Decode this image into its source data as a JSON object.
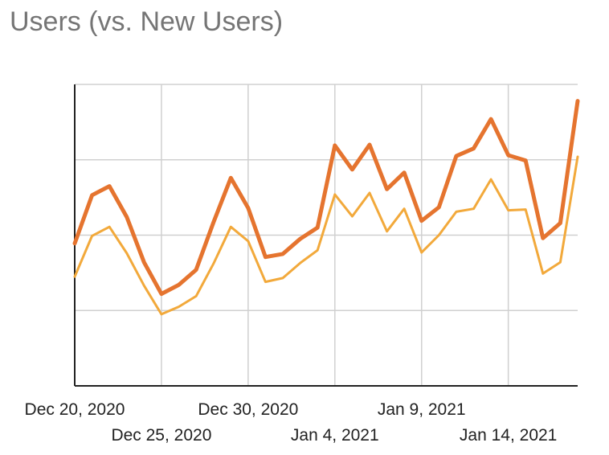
{
  "title": "Users (vs. New Users)",
  "chart_data": {
    "type": "line",
    "title": "Users (vs. New Users)",
    "xlabel": "",
    "ylabel": "",
    "x_tick_labels": [
      {
        "date": "Dec 20, 2020",
        "index": 0
      },
      {
        "date": "Dec 25, 2020",
        "index": 5
      },
      {
        "date": "Dec 30, 2020",
        "index": 10
      },
      {
        "date": "Jan 4, 2021",
        "index": 15
      },
      {
        "date": "Jan 9, 2021",
        "index": 20
      },
      {
        "date": "Jan 14, 2021",
        "index": 25
      }
    ],
    "x": [
      "Dec 20, 2020",
      "Dec 21, 2020",
      "Dec 22, 2020",
      "Dec 23, 2020",
      "Dec 24, 2020",
      "Dec 25, 2020",
      "Dec 26, 2020",
      "Dec 27, 2020",
      "Dec 28, 2020",
      "Dec 29, 2020",
      "Dec 30, 2020",
      "Dec 31, 2020",
      "Jan 1, 2021",
      "Jan 2, 2021",
      "Jan 3, 2021",
      "Jan 4, 2021",
      "Jan 5, 2021",
      "Jan 6, 2021",
      "Jan 7, 2021",
      "Jan 8, 2021",
      "Jan 9, 2021",
      "Jan 10, 2021",
      "Jan 11, 2021",
      "Jan 12, 2021",
      "Jan 13, 2021",
      "Jan 14, 2021",
      "Jan 15, 2021",
      "Jan 16, 2021",
      "Jan 17, 2021",
      "Jan 18, 2021"
    ],
    "ylim": [
      0,
      4
    ],
    "y_gridlines": 4,
    "y_tick_labels_visible": false,
    "grid": true,
    "series": [
      {
        "color": "#E5742F",
        "values": [
          1.89,
          2.53,
          2.65,
          2.24,
          1.64,
          1.22,
          1.34,
          1.54,
          2.17,
          2.76,
          2.36,
          1.71,
          1.75,
          1.95,
          2.1,
          3.19,
          2.87,
          3.2,
          2.61,
          2.83,
          2.19,
          2.37,
          3.05,
          3.15,
          3.54,
          3.06,
          2.99,
          1.96,
          2.16,
          3.78
        ]
      },
      {
        "color": "#F2A93B",
        "values": [
          1.45,
          1.99,
          2.11,
          1.76,
          1.33,
          0.95,
          1.05,
          1.19,
          1.62,
          2.11,
          1.92,
          1.38,
          1.43,
          1.63,
          1.8,
          2.54,
          2.25,
          2.56,
          2.05,
          2.35,
          1.77,
          2.0,
          2.31,
          2.35,
          2.74,
          2.33,
          2.34,
          1.49,
          1.64,
          3.04
        ]
      }
    ]
  }
}
